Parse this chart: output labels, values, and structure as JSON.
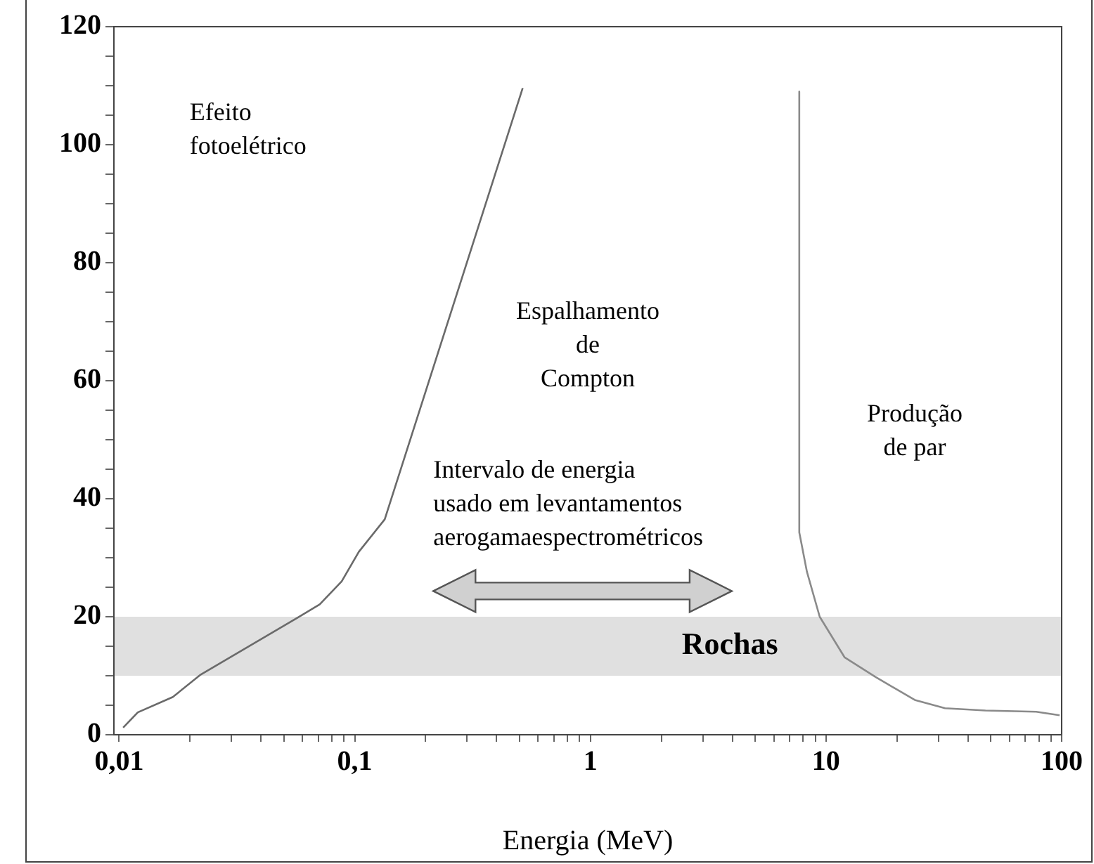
{
  "chart_data": {
    "type": "line",
    "xlabel": "Energia (MeV)",
    "log": "x",
    "grid": false,
    "legend": false,
    "marker": "none",
    "line_style": "solid",
    "xlim": [
      0.0095,
      100
    ],
    "xticks": [
      {
        "value": 0.01,
        "label": "0,01"
      },
      {
        "value": 0.02,
        "label": null
      },
      {
        "value": 0.03,
        "label": null
      },
      {
        "value": 0.04,
        "label": null
      },
      {
        "value": 0.05,
        "label": null
      },
      {
        "value": 0.06,
        "label": null
      },
      {
        "value": 0.07,
        "label": null
      },
      {
        "value": 0.08,
        "label": null
      },
      {
        "value": 0.09,
        "label": null
      },
      {
        "value": 0.1,
        "label": "0,1"
      },
      {
        "value": 0.2,
        "label": null
      },
      {
        "value": 0.3,
        "label": null
      },
      {
        "value": 0.4,
        "label": null
      },
      {
        "value": 0.5,
        "label": null
      },
      {
        "value": 0.6,
        "label": null
      },
      {
        "value": 0.7,
        "label": null
      },
      {
        "value": 0.8,
        "label": null
      },
      {
        "value": 0.9,
        "label": null
      },
      1,
      {
        "value": 2,
        "label": null
      },
      {
        "value": 3,
        "label": null
      },
      {
        "value": 4,
        "label": null
      },
      {
        "value": 5,
        "label": null
      },
      {
        "value": 6,
        "label": null
      },
      {
        "value": 7,
        "label": null
      },
      {
        "value": 8,
        "label": null
      },
      {
        "value": 9,
        "label": null
      },
      10,
      {
        "value": 20,
        "label": null
      },
      {
        "value": 30,
        "label": null
      },
      {
        "value": 40,
        "label": null
      },
      {
        "value": 50,
        "label": null
      },
      {
        "value": 60,
        "label": null
      },
      {
        "value": 70,
        "label": null
      },
      {
        "value": 80,
        "label": null
      },
      {
        "value": 90,
        "label": null
      },
      100
    ],
    "ylim": [
      0,
      120
    ],
    "yticks": [
      0,
      {
        "value": 5,
        "label": null
      },
      {
        "value": 10,
        "label": null
      },
      {
        "value": 15,
        "label": null
      },
      20,
      {
        "value": 25,
        "label": null
      },
      {
        "value": 30,
        "label": null
      },
      {
        "value": 35,
        "label": null
      },
      40,
      {
        "value": 45,
        "label": null
      },
      {
        "value": 50,
        "label": null
      },
      {
        "value": 55,
        "label": null
      },
      60,
      {
        "value": 65,
        "label": null
      },
      {
        "value": 70,
        "label": null
      },
      {
        "value": 75,
        "label": null
      },
      80,
      {
        "value": 85,
        "label": null
      },
      {
        "value": 90,
        "label": null
      },
      {
        "value": 95,
        "label": null
      },
      100,
      {
        "value": 105,
        "label": null
      },
      {
        "value": 110,
        "label": null
      },
      {
        "value": 115,
        "label": null
      },
      120
    ],
    "series": [
      {
        "color": "#6a6a6a",
        "x": [
          0.0104,
          0.012,
          0.0169,
          0.0222,
          0.057,
          0.071,
          0.088,
          0.104,
          0.134,
          0.516
        ],
        "values": [
          1.2,
          3.8,
          6.4,
          10.2,
          19.8,
          22.1,
          26,
          31,
          36.5,
          109.6
        ]
      },
      {
        "color": "#8a8a8a",
        "x": [
          7.7,
          7.7,
          8.3,
          9.4,
          12,
          16.2,
          23.8,
          32,
          47.5,
          78,
          98
        ],
        "values": [
          109,
          34.3,
          27.6,
          20,
          13.1,
          9.8,
          5.9,
          4.5,
          4.1,
          3.9,
          3.3
        ]
      }
    ],
    "bands": [
      {
        "axis": "y",
        "from": 10,
        "to": 20,
        "label": "Rochas",
        "color": "#e0e0e0"
      }
    ],
    "annotations": [
      "Efeito\nfotoelétrico",
      "Espalhamento\nde\nCompton",
      "Produção\nde par",
      "Intervalo de energia\nusado em levantamentos\naerogamaespectrométricos"
    ]
  }
}
